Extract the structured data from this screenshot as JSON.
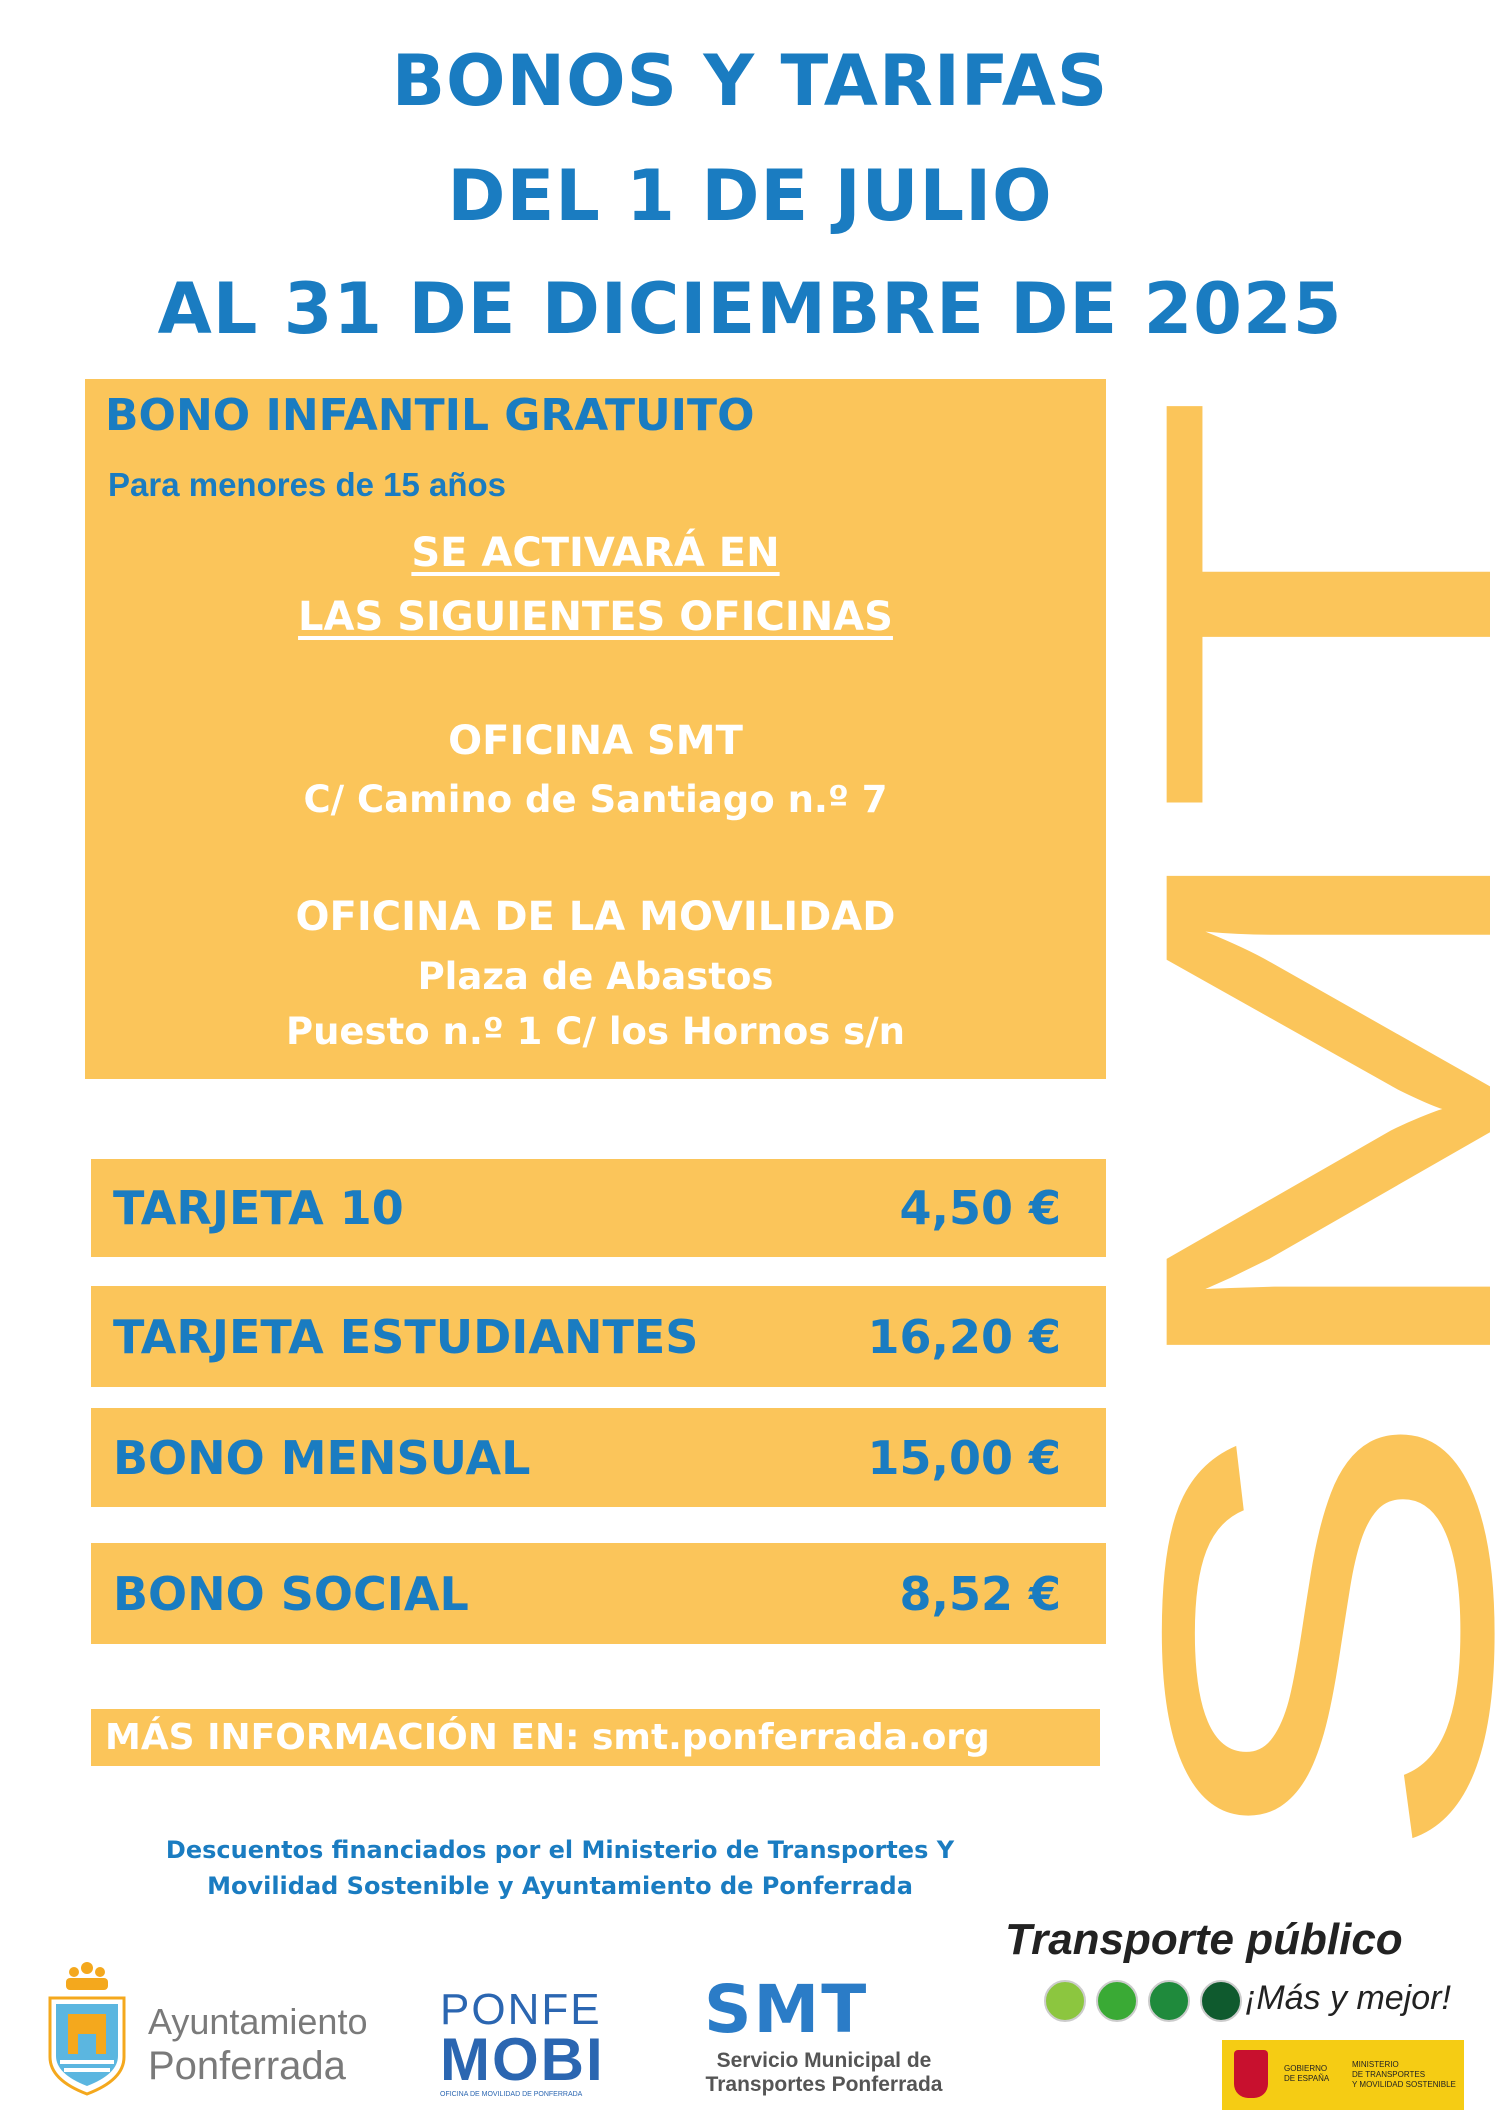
{
  "header": {
    "lines": [
      "BONOS Y TARIFAS",
      "DEL 1 DE JULIO",
      "AL 31 DE DICIEMBRE DE 2025"
    ]
  },
  "infantil": {
    "title": "BONO INFANTIL GRATUITO",
    "subtitle": "Para menores de 15 años",
    "activation": [
      "SE ACTIVARÁ EN",
      "LAS SIGUIENTES OFICINAS"
    ],
    "office1": {
      "name": "OFICINA SMT",
      "address": "C/ Camino de Santiago n.º 7"
    },
    "office2": {
      "name": "OFICINA DE LA MOVILIDAD",
      "address1": "Plaza de Abastos",
      "address2": "Puesto n.º 1 C/ los Hornos s/n"
    }
  },
  "fares": [
    {
      "name": "TARJETA 10",
      "price": "4,50 €"
    },
    {
      "name": "TARJETA ESTUDIANTES",
      "price": "16,20 €"
    },
    {
      "name": "BONO MENSUAL",
      "price": "15,00 €"
    },
    {
      "name": "BONO SOCIAL",
      "price": "8,52 €"
    }
  ],
  "info": "MÁS INFORMACIÓN EN: smt.ponferrada.org",
  "footnote": [
    "Descuentos financiados por el Ministerio de Transportes Y",
    "Movilidad Sostenible y Ayuntamiento de Ponferrada"
  ],
  "watermark": "SMT",
  "logos": {
    "ayuntamiento": [
      "Ayuntamiento",
      "Ponferrada"
    ],
    "ponfemobi": {
      "top": "PONFE",
      "bottom": "MOBI",
      "tagline": "OFICINA DE MOVILIDAD DE PONFERRADA"
    },
    "smt": {
      "mark": "SMT",
      "lines": [
        "Servicio Municipal de",
        "Transportes Ponferrada"
      ]
    },
    "transporte": {
      "title": "Transporte público",
      "slogan": "¡Más y mejor!"
    },
    "gobierno": {
      "left": [
        "GOBIERNO",
        "DE ESPAÑA"
      ],
      "right": [
        "MINISTERIO",
        "DE TRANSPORTES",
        "Y MOVILIDAD SOSTENIBLE"
      ]
    }
  },
  "colors": {
    "blue": "#1a7cc1",
    "yellow": "#fbc55a"
  }
}
